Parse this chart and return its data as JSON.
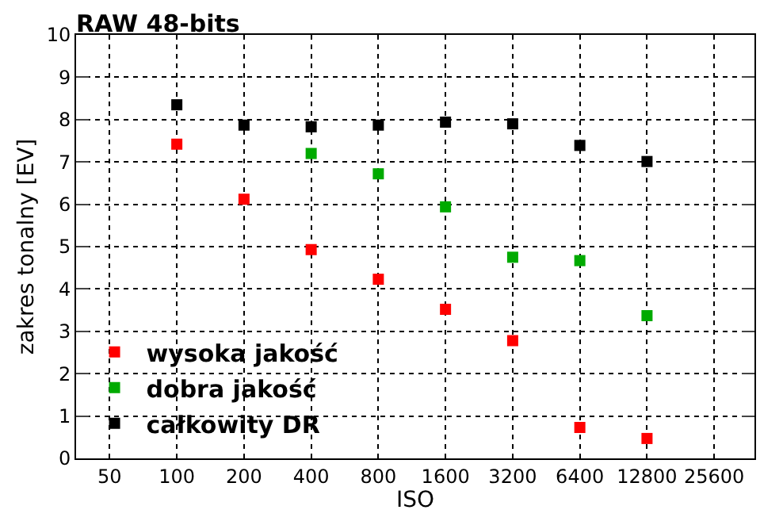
{
  "chart_data": {
    "type": "scatter",
    "title": "RAW 48-bits",
    "xlabel": "ISO",
    "ylabel": "zakres tonalny [EV]",
    "categories": [
      "50",
      "100",
      "200",
      "400",
      "800",
      "1600",
      "3200",
      "6400",
      "12800",
      "25600"
    ],
    "series": [
      {
        "name": "wysoka jakość",
        "color": "#ff0000",
        "values": [
          null,
          7.42,
          6.12,
          4.93,
          4.23,
          3.52,
          2.78,
          0.73,
          0.47,
          null
        ]
      },
      {
        "name": "dobra jakość",
        "color": "#00aa00",
        "values": [
          null,
          null,
          null,
          7.2,
          6.72,
          5.94,
          4.75,
          4.67,
          3.37,
          null
        ]
      },
      {
        "name": "całkowity DR",
        "color": "#000000",
        "values": [
          null,
          8.35,
          7.87,
          7.83,
          7.87,
          7.94,
          7.9,
          7.39,
          7.01,
          null
        ]
      }
    ],
    "ylim": [
      0,
      10
    ],
    "yticks": [
      0,
      1,
      2,
      3,
      4,
      5,
      6,
      7,
      8,
      9,
      10
    ],
    "grid": true,
    "legend": "bottom left",
    "marker": "square"
  }
}
